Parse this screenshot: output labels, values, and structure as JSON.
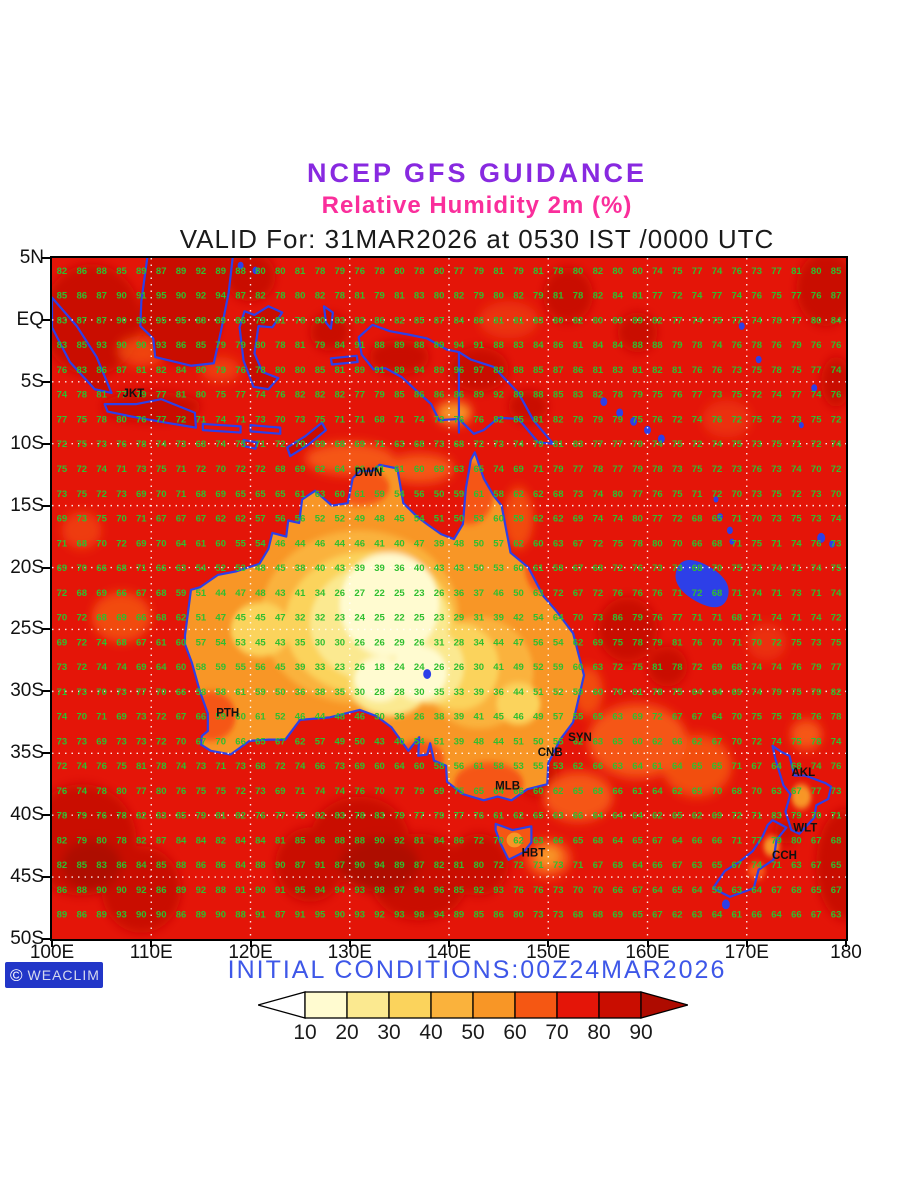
{
  "header": {
    "line1": "NCEP GFS GUIDANCE",
    "line2": "Relative Humidity 2m (%)",
    "line3": "VALID For: 31MAR2026 at 0530 IST /0000 UTC"
  },
  "footer": {
    "initial_conditions": "INITIAL CONDITIONS:00Z24MAR2026",
    "logo_glyph": "©",
    "logo_text": "WEACLIM"
  },
  "colors": {
    "title_purple": "#8829E0",
    "subtitle_pink": "#FA2E9B",
    "initial_blue": "#3E57E8",
    "logo_bg": "#2236C8",
    "coast_blue": "#2D3FE8",
    "value_green": "#2FBF2F",
    "city_black": "#111111",
    "grid_dot_white": "#FFFFFF",
    "bands": {
      "b10": "#FFFBD0",
      "b20": "#FBE990",
      "b30": "#FBD35C",
      "b40": "#FAB23C",
      "b50": "#F89626",
      "b60": "#F55713",
      "b70": "#E41508",
      "b80": "#C90D00",
      "b90": "#AE0B00"
    }
  },
  "map": {
    "lon_min": 100,
    "lon_max": 180,
    "lat_min": -50,
    "lat_max": 5,
    "x_ticks": [
      {
        "lon": 100,
        "label": "100E"
      },
      {
        "lon": 110,
        "label": "110E"
      },
      {
        "lon": 120,
        "label": "120E"
      },
      {
        "lon": 130,
        "label": "130E"
      },
      {
        "lon": 140,
        "label": "140E"
      },
      {
        "lon": 150,
        "label": "150E"
      },
      {
        "lon": 160,
        "label": "160E"
      },
      {
        "lon": 170,
        "label": "170E"
      },
      {
        "lon": 180,
        "label": "180"
      }
    ],
    "y_ticks": [
      {
        "lat": 5,
        "label": "5N"
      },
      {
        "lat": 0,
        "label": "EQ"
      },
      {
        "lat": -5,
        "label": "5S"
      },
      {
        "lat": -10,
        "label": "10S"
      },
      {
        "lat": -15,
        "label": "15S"
      },
      {
        "lat": -20,
        "label": "20S"
      },
      {
        "lat": -25,
        "label": "25S"
      },
      {
        "lat": -30,
        "label": "30S"
      },
      {
        "lat": -35,
        "label": "35S"
      },
      {
        "lat": -40,
        "label": "40S"
      },
      {
        "lat": -45,
        "label": "45S"
      },
      {
        "lat": -50,
        "label": "50S"
      }
    ],
    "grid_lons": [
      110,
      120,
      130,
      140,
      150,
      160,
      170
    ],
    "grid_lats": [
      0,
      -5,
      -10,
      -15,
      -20,
      -25,
      -30,
      -35,
      -40,
      -45
    ],
    "cities": [
      {
        "name": "JKT",
        "lon": 108.2,
        "lat": -5.9
      },
      {
        "name": "DWN",
        "lon": 131.9,
        "lat": -12.3
      },
      {
        "name": "PTH",
        "lon": 117.7,
        "lat": -31.7
      },
      {
        "name": "SYN",
        "lon": 153.2,
        "lat": -33.7
      },
      {
        "name": "CNB",
        "lon": 150.2,
        "lat": -34.9
      },
      {
        "name": "MLB",
        "lon": 145.9,
        "lat": -37.6
      },
      {
        "name": "HBT",
        "lon": 148.5,
        "lat": -43.0
      },
      {
        "name": "AKL",
        "lon": 175.7,
        "lat": -36.5
      },
      {
        "name": "WLT",
        "lon": 175.9,
        "lat": -41.0
      },
      {
        "name": "CCH",
        "lon": 173.8,
        "lat": -43.2
      }
    ],
    "value_grid": {
      "lon_start": 101,
      "lon_step": 2,
      "lon_count": 40,
      "lat_start": 4,
      "lat_step": -2,
      "lat_count": 27
    },
    "field_points": [
      [
        100,
        2,
        80
      ],
      [
        102,
        2,
        88
      ],
      [
        106,
        -2,
        92
      ],
      [
        111,
        0,
        96
      ],
      [
        116,
        2,
        92
      ],
      [
        113,
        -5,
        82
      ],
      [
        120,
        -4,
        78
      ],
      [
        124,
        1,
        80
      ],
      [
        127,
        -5,
        84
      ],
      [
        132,
        -3,
        90
      ],
      [
        137,
        -4,
        93
      ],
      [
        142,
        -4,
        96
      ],
      [
        146,
        -6,
        90
      ],
      [
        150,
        -5,
        88
      ],
      [
        150,
        3,
        80
      ],
      [
        157,
        1,
        82
      ],
      [
        163,
        2,
        74
      ],
      [
        170,
        2,
        75
      ],
      [
        177,
        2,
        74
      ],
      [
        180,
        -3,
        76
      ],
      [
        159,
        -1,
        88
      ],
      [
        178,
        2,
        90
      ],
      [
        118,
        -10,
        74
      ],
      [
        125,
        -10,
        72
      ],
      [
        132,
        -10,
        70
      ],
      [
        139,
        -11,
        72
      ],
      [
        145,
        -11,
        75
      ],
      [
        128,
        -12,
        64
      ],
      [
        135,
        -13,
        60
      ],
      [
        152,
        -10,
        82
      ],
      [
        158,
        -13,
        80
      ],
      [
        165,
        -12,
        74
      ],
      [
        172,
        -12,
        74
      ],
      [
        178,
        -12,
        72
      ],
      [
        107,
        -7,
        78
      ],
      [
        111,
        -8,
        76
      ],
      [
        115,
        -9,
        70
      ],
      [
        120,
        -9,
        72
      ],
      [
        155,
        -18,
        72
      ],
      [
        160,
        -17,
        80
      ],
      [
        166,
        -17,
        65
      ],
      [
        171,
        -19,
        74
      ],
      [
        177,
        -18,
        74
      ],
      [
        157,
        -24,
        85
      ],
      [
        162,
        -27,
        82
      ],
      [
        168,
        -24,
        70
      ],
      [
        174,
        -24,
        72
      ],
      [
        179,
        -24,
        74
      ],
      [
        160,
        -30,
        80
      ],
      [
        167,
        -30,
        64
      ],
      [
        173,
        -30,
        78
      ],
      [
        179,
        -30,
        80
      ],
      [
        155,
        -33,
        65
      ],
      [
        160,
        -34,
        62
      ],
      [
        165,
        -35,
        63
      ],
      [
        170,
        -34,
        72
      ],
      [
        176,
        -33,
        78
      ],
      [
        154,
        -38,
        68
      ],
      [
        159,
        -39,
        62
      ],
      [
        164,
        -40,
        64
      ],
      [
        169,
        -40,
        70
      ],
      [
        174,
        -37,
        62
      ],
      [
        177,
        -37,
        76
      ],
      [
        174,
        -41,
        86
      ],
      [
        178,
        -41,
        68
      ],
      [
        171,
        -43,
        75
      ],
      [
        175,
        -44,
        64
      ],
      [
        167,
        -46,
        60
      ],
      [
        178,
        -46,
        66
      ],
      [
        102,
        -47,
        88
      ],
      [
        108,
        -47,
        92
      ],
      [
        115,
        -46,
        90
      ],
      [
        121,
        -46,
        92
      ],
      [
        127,
        -46,
        95
      ],
      [
        133,
        -46,
        98
      ],
      [
        138,
        -47,
        97
      ],
      [
        144,
        -46,
        93
      ],
      [
        150,
        -45,
        76
      ],
      [
        155,
        -44,
        68
      ],
      [
        161,
        -45,
        66
      ],
      [
        168,
        -47,
        62
      ],
      [
        174,
        -48,
        66
      ],
      [
        179,
        -48,
        64
      ],
      [
        128,
        -42,
        88
      ],
      [
        134,
        -42,
        92
      ],
      [
        140,
        -42,
        85
      ],
      [
        146,
        -43,
        72
      ],
      [
        151,
        -41,
        64
      ],
      [
        100,
        -5,
        76
      ],
      [
        100,
        -12,
        73
      ],
      [
        100,
        -18,
        70
      ],
      [
        101,
        -24,
        70
      ],
      [
        100,
        -30,
        72
      ],
      [
        100,
        -36,
        74
      ],
      [
        100,
        -42,
        80
      ],
      [
        104,
        -15,
        73
      ],
      [
        105,
        -21,
        68
      ],
      [
        104,
        -28,
        74
      ],
      [
        105,
        -33,
        70
      ],
      [
        106,
        -39,
        78
      ],
      [
        109,
        -18,
        70
      ],
      [
        110,
        -24,
        68
      ],
      [
        109,
        -30,
        75
      ],
      [
        110,
        -36,
        80
      ],
      [
        112,
        -41,
        85
      ],
      [
        118,
        -42,
        84
      ],
      [
        112,
        -27,
        62
      ],
      [
        113,
        -33,
        68
      ],
      [
        118,
        -36,
        72
      ],
      [
        124,
        -36,
        72
      ],
      [
        130,
        -37,
        76
      ],
      [
        136,
        -38,
        78
      ],
      [
        142,
        -39,
        80
      ],
      [
        130,
        -33,
        50
      ],
      [
        134,
        -33,
        38
      ],
      [
        138,
        -34,
        55
      ],
      [
        126,
        -20,
        40
      ],
      [
        130,
        -18,
        45
      ],
      [
        135,
        -17,
        38
      ],
      [
        139,
        -18,
        40
      ],
      [
        143,
        -17,
        52
      ],
      [
        147,
        -17,
        60
      ],
      [
        150,
        -20,
        58
      ],
      [
        122,
        -24,
        45
      ],
      [
        126,
        -25,
        30
      ],
      [
        130,
        -23,
        22
      ],
      [
        134,
        -23,
        20
      ],
      [
        138,
        -23,
        22
      ],
      [
        142,
        -24,
        28
      ],
      [
        146,
        -24,
        40
      ],
      [
        150,
        -26,
        55
      ],
      [
        153,
        -27,
        62
      ],
      [
        117,
        -23,
        45
      ],
      [
        115,
        -26,
        55
      ],
      [
        117,
        -30,
        58
      ],
      [
        121,
        -30,
        60
      ],
      [
        125,
        -30,
        38
      ],
      [
        129,
        -28,
        24
      ],
      [
        133,
        -28,
        20
      ],
      [
        137,
        -28,
        22
      ],
      [
        141,
        -28,
        25
      ],
      [
        145,
        -30,
        38
      ],
      [
        149,
        -31,
        48
      ],
      [
        152,
        -32,
        55
      ],
      [
        133,
        -31,
        26
      ],
      [
        137,
        -32,
        28
      ],
      [
        141,
        -33,
        36
      ],
      [
        145,
        -34,
        45
      ],
      [
        148,
        -35,
        50
      ],
      [
        143,
        -37,
        62
      ],
      [
        147,
        -38,
        64
      ],
      [
        150,
        -36,
        55
      ],
      [
        130,
        -13,
        63
      ],
      [
        135,
        -14,
        55
      ],
      [
        139,
        -15,
        50
      ],
      [
        141,
        -13,
        60
      ],
      [
        145,
        -15,
        58
      ],
      [
        148,
        -19,
        62
      ],
      [
        151,
        -22,
        70
      ],
      [
        153,
        -24,
        68
      ],
      [
        146,
        -41,
        60
      ],
      [
        148,
        -42,
        62
      ],
      [
        145,
        -43,
        72
      ],
      [
        137,
        -16,
        55
      ]
    ]
  },
  "colorbar": {
    "labels": [
      "10",
      "20",
      "30",
      "40",
      "50",
      "60",
      "70",
      "80",
      "90"
    ],
    "segment_colors": [
      "#FFFBD0",
      "#FBE990",
      "#FBD35C",
      "#FAB23C",
      "#F89626",
      "#F55713",
      "#E41508",
      "#C90D00"
    ],
    "left_arrow_color": "#FFFFFF",
    "right_arrow_color": "#AE0B00"
  }
}
